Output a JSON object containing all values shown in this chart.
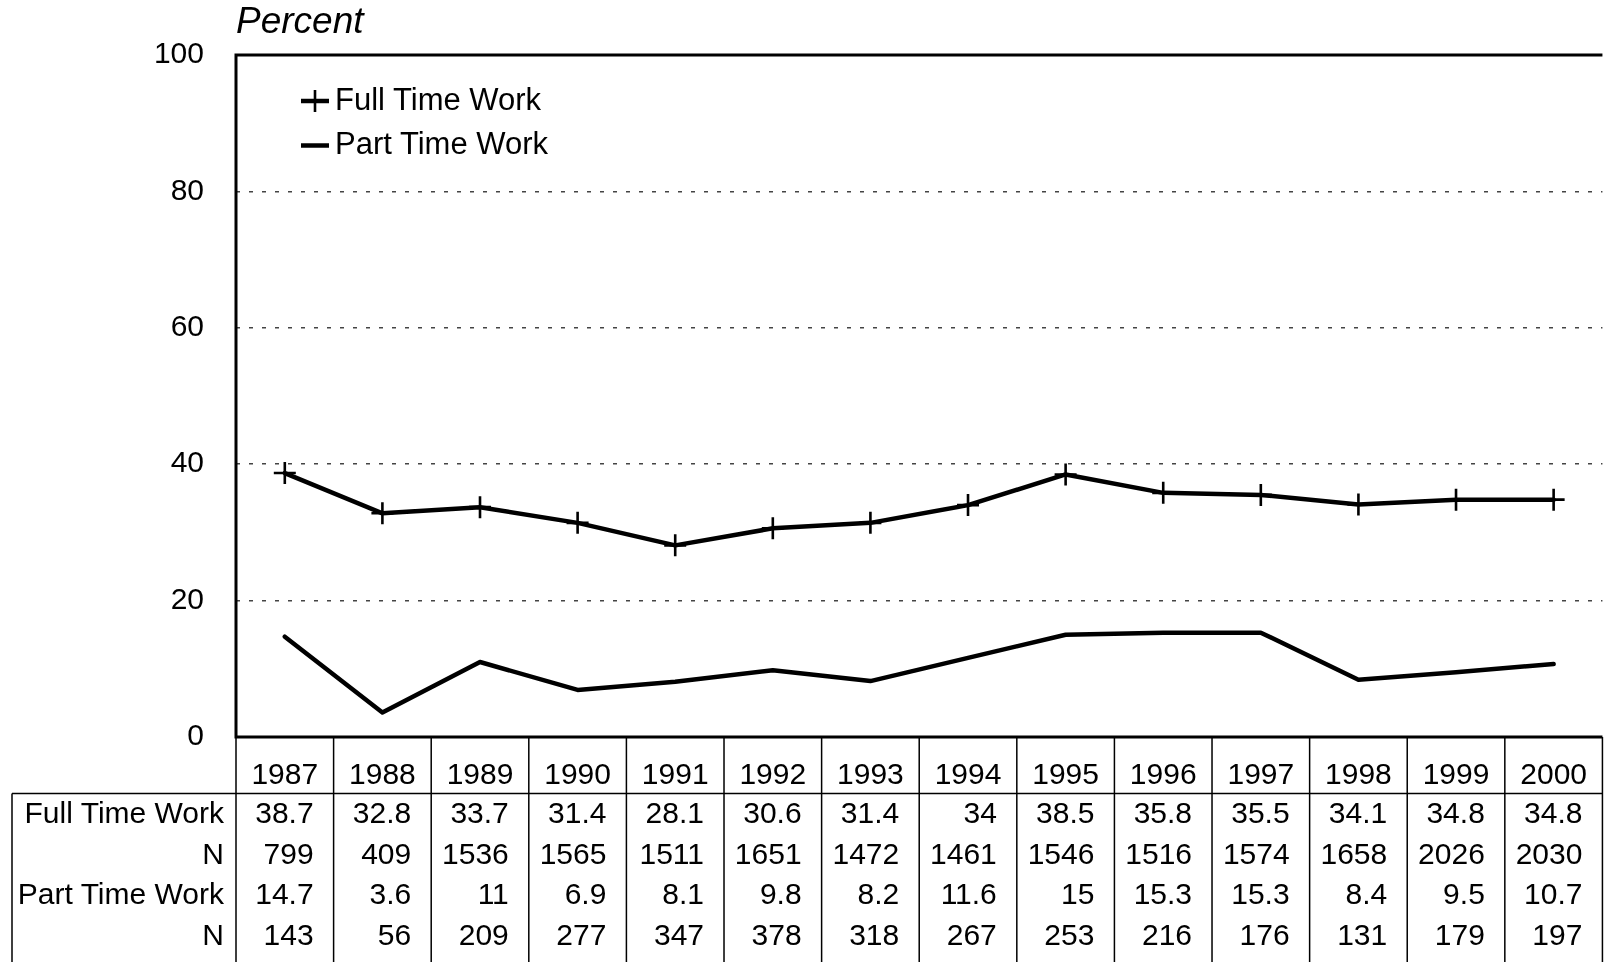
{
  "chart_data": {
    "type": "line",
    "ylabel": "Percent",
    "categories": [
      "1987",
      "1988",
      "1989",
      "1990",
      "1991",
      "1992",
      "1993",
      "1994",
      "1995",
      "1996",
      "1997",
      "1998",
      "1999",
      "2000"
    ],
    "series": [
      {
        "name": "Full Time Work",
        "color": "#000000",
        "marker": "cross",
        "values": [
          38.7,
          32.8,
          33.7,
          31.4,
          28.1,
          30.6,
          31.4,
          34,
          38.5,
          35.8,
          35.5,
          34.1,
          34.8,
          34.8
        ]
      },
      {
        "name": "Part Time Work",
        "color": "#000000",
        "marker": "none",
        "values": [
          14.7,
          3.6,
          11,
          6.9,
          8.1,
          9.8,
          8.2,
          11.6,
          15,
          15.3,
          15.3,
          8.4,
          9.5,
          10.7
        ]
      }
    ],
    "annotations": [
      "N 799 409 1536 1565 1511 1651 1472 1461 1546 1516 1574 1658 2026 2030",
      "N 143 56 209 277 347 378 318 267 253 216 176 131 179 197"
    ],
    "ylim": [
      0,
      100
    ],
    "yticks": [
      0,
      20,
      40,
      60,
      80,
      100
    ],
    "grid": "y",
    "legend": "top left",
    "data_labels": true
  }
}
